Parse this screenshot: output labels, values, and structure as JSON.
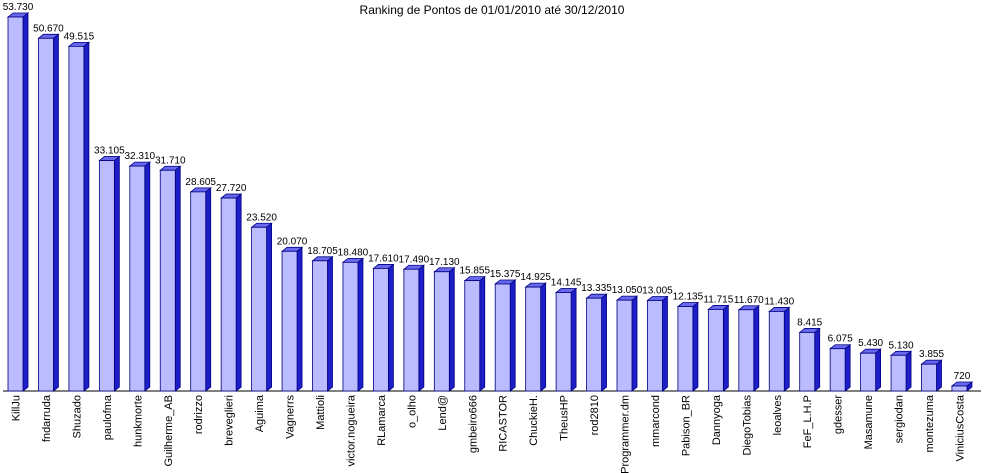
{
  "chart_data": {
    "type": "bar",
    "title": "Ranking de Pontos de 01/01/2010 até 30/12/2010",
    "xlabel": "",
    "ylabel": "",
    "ylim": [
      0,
      53730
    ],
    "grid": false,
    "legend": "none",
    "colors": {
      "bar_front": "#bbbbff",
      "bar_side": "#1e1ec8",
      "bar_top": "#6868ee",
      "bar_outline": "#000080"
    },
    "categories": [
      "KillJu",
      "fndarruda",
      "Shuzado",
      "paulofma",
      "hunkmorte",
      "Guilherme_AB",
      "rodrizzo",
      "breveglieri",
      "Aguima",
      "Vagnerrs",
      "Mattioli",
      "victor.nogueira",
      "RLamarca",
      "o_olho",
      "Lend@",
      "gmbeiro666",
      "RICASTOR",
      "ChuckieH.",
      "TheusHP",
      "rod2810",
      "Programmer.dm",
      "mmarcond",
      "Pabison_BR",
      "Dannyoga",
      "DiegoTobias",
      "leoalves",
      "FeF_L.H.P",
      "gdesser",
      "Masamune",
      "sergiodan",
      "montezuma",
      "ViniciusCosta"
    ],
    "values": [
      53730,
      50670,
      49515,
      33105,
      32310,
      31710,
      28605,
      27720,
      23520,
      20070,
      18705,
      18480,
      17610,
      17490,
      17130,
      15855,
      15375,
      14925,
      14145,
      13335,
      13050,
      13005,
      12135,
      11715,
      11670,
      11430,
      8415,
      6075,
      5430,
      5130,
      3855,
      720
    ],
    "value_labels": [
      "53.730",
      "50.670",
      "49.515",
      "33.105",
      "32.310",
      "31.710",
      "28.605",
      "27.720",
      "23.520",
      "20.070",
      "18.705",
      "18.480",
      "17.610",
      "17.490",
      "17.130",
      "15.855",
      "15.375",
      "14.925",
      "14.145",
      "13.335",
      "13.050",
      "13.005",
      "12.135",
      "11.715",
      "11.670",
      "11.430",
      "8.415",
      "6.075",
      "5.430",
      "5.130",
      "3.855",
      "720"
    ]
  }
}
